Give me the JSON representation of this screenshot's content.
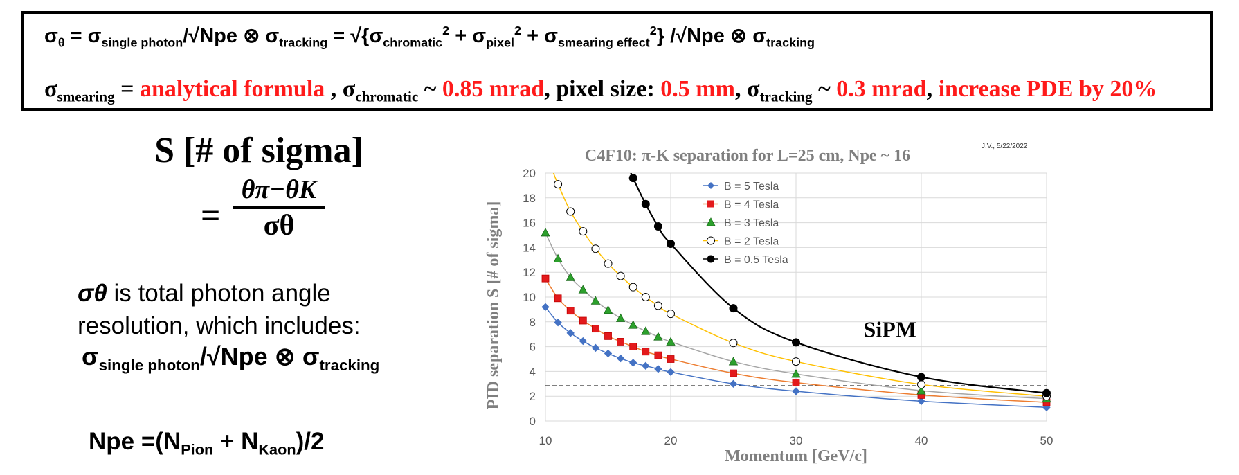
{
  "formulas": {
    "line1": {
      "sigma": "σ",
      "theta": "θ",
      "eq": " = ",
      "single_sub": "single photon",
      "over_sqrt": "/√Npe ⊗ ",
      "tracking_sub": "tracking",
      "sqrt_open": " = √{",
      "chromatic_sub": "chromatic",
      "sq": "2",
      "plus": " + ",
      "pixel_sub": "pixel",
      "smearing_sub": "smearing effect",
      "close": "} /√Npe ⊗ "
    },
    "line2": {
      "sigma": "σ",
      "smearing_sub": "smearing",
      "eq": " = ",
      "analytical": "analytical formula",
      "comma": " , ",
      "chromatic_sub": "chromatic",
      "tilde": " ~ ",
      "chromatic_val": "0.85 mrad",
      "pixel_label": ", pixel size: ",
      "pixel_val": "0.5 mm",
      "comma2": ", ",
      "tracking_sub": "tracking",
      "tracking_val": "0.3 mrad",
      "comma3": ", ",
      "pde": "increase PDE by 20%"
    }
  },
  "left_panel": {
    "s_title": "S [# of sigma]",
    "equals": "=",
    "numerator": "θπ−θK",
    "denominator": "σθ",
    "desc_sigma": "σθ",
    "desc_line1_rest": " is total photon angle",
    "desc_line2": "resolution, which includes:",
    "desc_line3_sigma": "σ",
    "desc_line3_single": "single  photon",
    "desc_line3_mid": "/√Npe ⊗ σ",
    "desc_line3_tracking": "tracking",
    "npe_prefix": "Npe =(N",
    "npe_pion": "Pion",
    "npe_plus": " + N",
    "npe_kaon": "Kaon",
    "npe_suffix": ")/2"
  },
  "chart_data": {
    "type": "scatter",
    "title": "C4F10: π-K separation for L=25 cm, Npe ~ 16",
    "signature": "J.V., 5/22/2022",
    "xlabel": "Momentum [GeV/c]",
    "ylabel": "PID separation S [# of sigma]",
    "xlim": [
      10,
      50
    ],
    "ylim": [
      0,
      20
    ],
    "xticks": [
      10,
      20,
      30,
      40,
      50
    ],
    "yticks": [
      0,
      2,
      4,
      6,
      8,
      10,
      12,
      14,
      16,
      18,
      20
    ],
    "grid": true,
    "legend_position": "top-center",
    "annotation": "SiPM",
    "threshold_line": 2.85,
    "series": [
      {
        "name": "B = 5 Tesla",
        "marker": "diamond",
        "color": "#4472c4",
        "fill": "#4472c4",
        "x": [
          10,
          11,
          12,
          13,
          14,
          15,
          16,
          17,
          18,
          19,
          20,
          25,
          30,
          40,
          50
        ],
        "y": [
          9.2,
          7.95,
          7.1,
          6.45,
          5.9,
          5.45,
          5.05,
          4.7,
          4.45,
          4.2,
          3.95,
          3.0,
          2.4,
          1.6,
          1.1
        ]
      },
      {
        "name": "B = 4 Tesla",
        "marker": "square",
        "color": "#ed7d31",
        "fill": "#e31a1c",
        "x": [
          10,
          11,
          12,
          13,
          14,
          15,
          16,
          17,
          18,
          19,
          20,
          25,
          30,
          40,
          50
        ],
        "y": [
          11.5,
          9.9,
          8.9,
          8.1,
          7.45,
          6.85,
          6.4,
          6.0,
          5.6,
          5.3,
          5.0,
          3.85,
          3.1,
          2.1,
          1.5
        ]
      },
      {
        "name": "B = 3 Tesla",
        "marker": "triangle",
        "color": "#a5a5a5",
        "fill": "#2ca02c",
        "x": [
          10,
          11,
          12,
          13,
          14,
          15,
          16,
          17,
          18,
          19,
          20,
          25,
          30,
          40,
          50
        ],
        "y": [
          15.2,
          13.1,
          11.6,
          10.6,
          9.7,
          8.95,
          8.3,
          7.75,
          7.25,
          6.8,
          6.4,
          4.8,
          3.8,
          2.45,
          1.8
        ]
      },
      {
        "name": "B = 2 Tesla",
        "marker": "circle-open",
        "color": "#ffc000",
        "fill": "#ffffff",
        "x": [
          11,
          12,
          13,
          14,
          15,
          16,
          17,
          18,
          19,
          20,
          25,
          30,
          40,
          50
        ],
        "y": [
          19.1,
          16.9,
          15.3,
          13.9,
          12.7,
          11.7,
          10.8,
          10.0,
          9.3,
          8.65,
          6.3,
          4.8,
          2.95,
          2.0
        ]
      },
      {
        "name": "B = 0.5 Tesla",
        "marker": "circle",
        "color": "#000000",
        "fill": "#000000",
        "x": [
          17,
          18,
          19,
          20,
          25,
          30,
          40,
          50
        ],
        "y": [
          19.6,
          17.5,
          15.7,
          14.3,
          9.1,
          6.35,
          3.55,
          2.25
        ]
      }
    ]
  }
}
